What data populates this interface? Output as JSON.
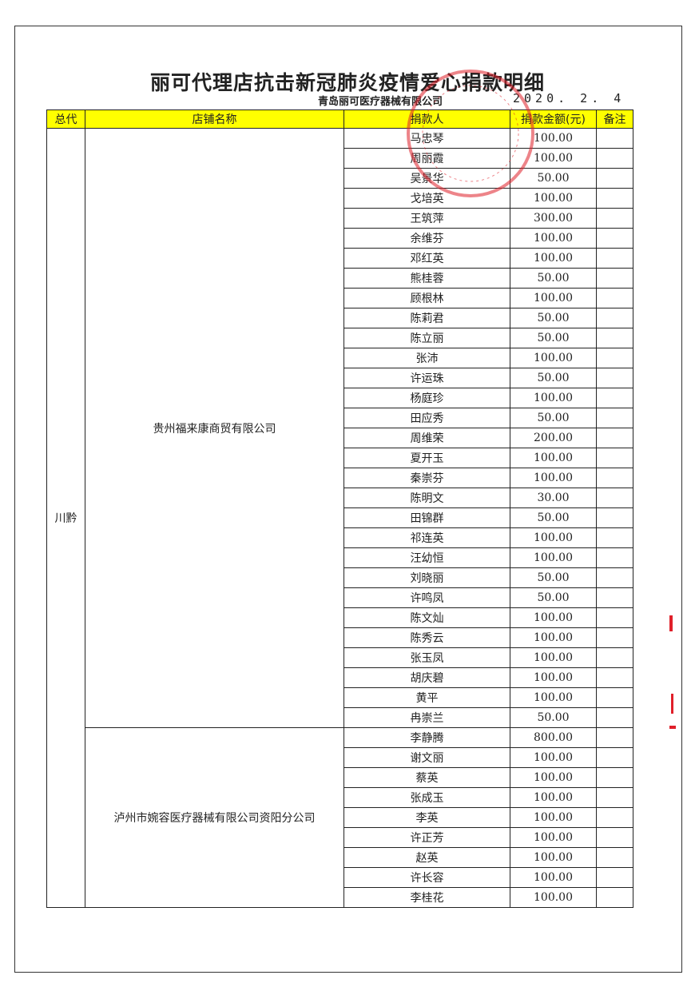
{
  "title": "丽可代理店抗击新冠肺炎疫情爱心捐款明细",
  "company": "青岛丽可医疗器械有限公司",
  "date": "2020. 2. 4",
  "stamp_color": "#e0202a",
  "header_color": "#ffff00",
  "columns": [
    "总代",
    "店铺名称",
    "捐款人",
    "捐款金额(元)",
    "备注"
  ],
  "region": "川黔",
  "stores": [
    {
      "name": "贵州福来康商贸有限公司",
      "donors": [
        [
          "马忠琴",
          "100.00"
        ],
        [
          "周丽霞",
          "100.00"
        ],
        [
          "吴景华",
          "50.00"
        ],
        [
          "戈培英",
          "100.00"
        ],
        [
          "王筑萍",
          "300.00"
        ],
        [
          "余维芬",
          "100.00"
        ],
        [
          "邓红英",
          "100.00"
        ],
        [
          "熊桂蓉",
          "50.00"
        ],
        [
          "顾根林",
          "100.00"
        ],
        [
          "陈莉君",
          "50.00"
        ],
        [
          "陈立丽",
          "50.00"
        ],
        [
          "张沛",
          "100.00"
        ],
        [
          "许运珠",
          "50.00"
        ],
        [
          "杨庭珍",
          "100.00"
        ],
        [
          "田应秀",
          "50.00"
        ],
        [
          "周维荣",
          "200.00"
        ],
        [
          "夏开玉",
          "100.00"
        ],
        [
          "秦崇芬",
          "100.00"
        ],
        [
          "陈明文",
          "30.00"
        ],
        [
          "田锦群",
          "50.00"
        ],
        [
          "祁连英",
          "100.00"
        ],
        [
          "汪幼恒",
          "100.00"
        ],
        [
          "刘晓丽",
          "50.00"
        ],
        [
          "许鸣凤",
          "50.00"
        ],
        [
          "陈文灿",
          "100.00"
        ],
        [
          "陈秀云",
          "100.00"
        ],
        [
          "张玉凤",
          "100.00"
        ],
        [
          "胡庆碧",
          "100.00"
        ],
        [
          "黄平",
          "100.00"
        ],
        [
          "冉崇兰",
          "50.00"
        ]
      ]
    },
    {
      "name": "泸州市婉容医疗器械有限公司资阳分公司",
      "donors": [
        [
          "李静腾",
          "800.00"
        ],
        [
          "谢文丽",
          "100.00"
        ],
        [
          "蔡英",
          "100.00"
        ],
        [
          "张成玉",
          "100.00"
        ],
        [
          "李英",
          "100.00"
        ],
        [
          "许正芳",
          "100.00"
        ],
        [
          "赵英",
          "100.00"
        ],
        [
          "许长容",
          "100.00"
        ],
        [
          "李桂花",
          "100.00"
        ]
      ]
    }
  ]
}
